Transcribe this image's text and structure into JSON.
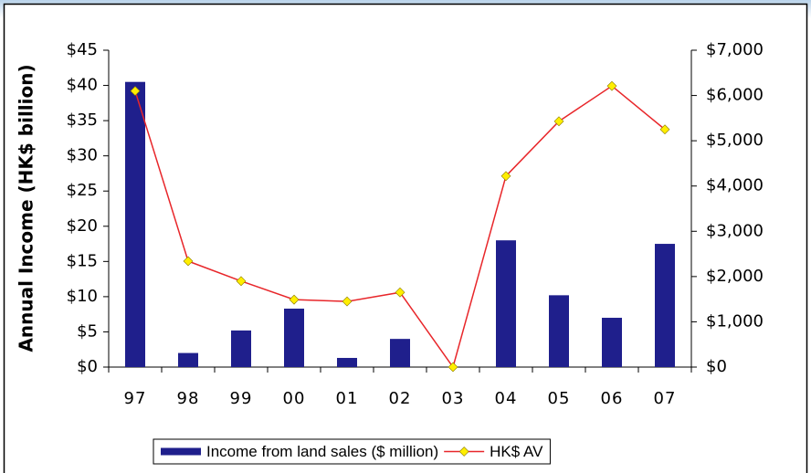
{
  "chart_data": {
    "type": "bar-line",
    "y_label": "Annual  Income  (HK$  billion)",
    "categories": [
      "97",
      "98",
      "99",
      "00",
      "01",
      "02",
      "03",
      "04",
      "05",
      "06",
      "07"
    ],
    "series": [
      {
        "name": "Income from land sales ($ million)",
        "color": "#1f1f8c",
        "type": "bar",
        "axis": "y",
        "values": [
          40.5,
          2,
          5.2,
          8.3,
          1.3,
          4,
          0,
          18,
          10.2,
          7,
          17.5
        ]
      },
      {
        "name": "HK$ AV",
        "color": "#e8262a",
        "marker_color": "#ffee00",
        "type": "line",
        "axis": "y2",
        "values": [
          6100,
          2340,
          1900,
          1490,
          1450,
          1650,
          0,
          4220,
          5430,
          6210,
          5250
        ]
      }
    ],
    "ylim": [
      0,
      45
    ],
    "yticks": [
      {
        "value": 0,
        "label": "$0"
      },
      {
        "value": 5,
        "label": "$5"
      },
      {
        "value": 10,
        "label": "$10"
      },
      {
        "value": 15,
        "label": "$15"
      },
      {
        "value": 20,
        "label": "$20"
      },
      {
        "value": 25,
        "label": "$25"
      },
      {
        "value": 30,
        "label": "$30"
      },
      {
        "value": 35,
        "label": "$35"
      },
      {
        "value": 40,
        "label": "$40"
      },
      {
        "value": 45,
        "label": "$45"
      }
    ],
    "y2lim": [
      0,
      7000
    ],
    "y2ticks": [
      {
        "value": 0,
        "label": "$0"
      },
      {
        "value": 1000,
        "label": "$1,000"
      },
      {
        "value": 2000,
        "label": "$2,000"
      },
      {
        "value": 3000,
        "label": "$3,000"
      },
      {
        "value": 4000,
        "label": "$4,000"
      },
      {
        "value": 5000,
        "label": "$5,000"
      },
      {
        "value": 6000,
        "label": "$6,000"
      },
      {
        "value": 7000,
        "label": "$7,000"
      }
    ],
    "legend": "bottom"
  }
}
